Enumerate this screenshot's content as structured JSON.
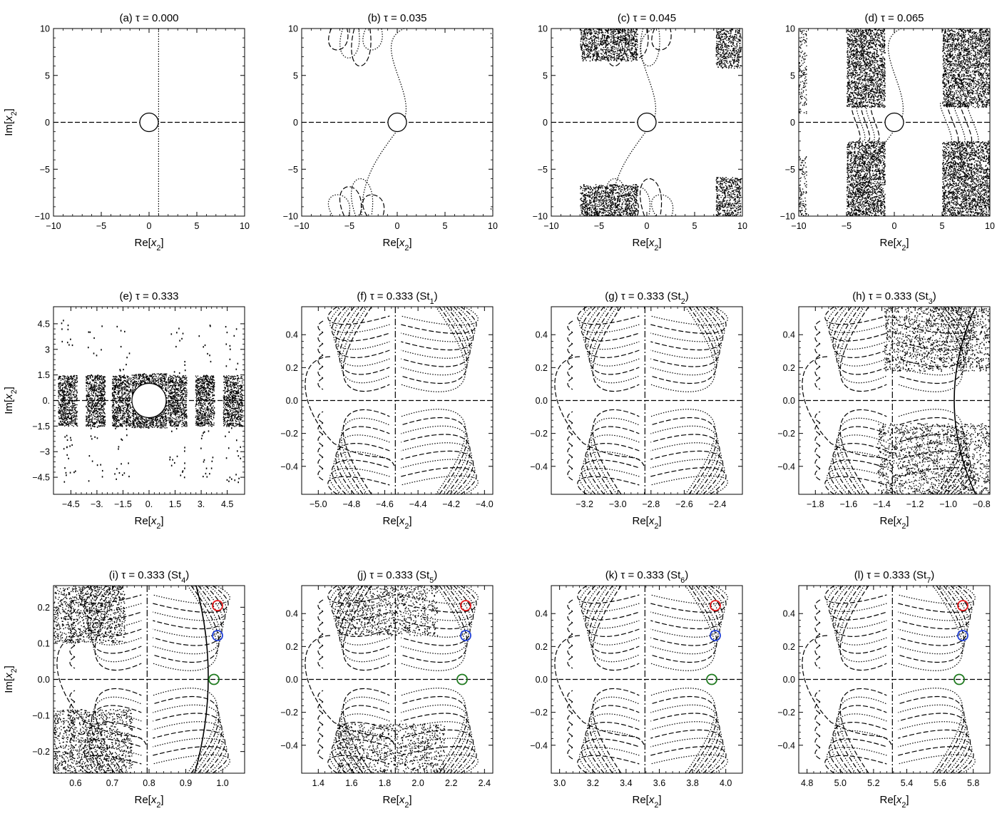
{
  "figure": {
    "panels": [
      {
        "id": "a",
        "title": "(a) τ = 0.000",
        "xlabel": "Re[x2]",
        "ylabel": "Im[x2]",
        "xticks": [
          "−10",
          "−5",
          "0",
          "5",
          "10"
        ],
        "yticks": [
          "10",
          "5",
          "0",
          "−5",
          "−10"
        ],
        "xrange": [
          -10,
          10
        ],
        "yrange": [
          -10,
          10
        ],
        "content": "axes-cross"
      },
      {
        "id": "b",
        "title": "(b) τ = 0.035",
        "xlabel": "Re[x2]",
        "ylabel": "",
        "xticks": [
          "−10",
          "−5",
          "0",
          "5",
          "10"
        ],
        "yticks": [
          "10",
          "5",
          "0",
          "−5",
          "−10"
        ],
        "xrange": [
          -10,
          10
        ],
        "yrange": [
          -10,
          10
        ],
        "content": "petals"
      },
      {
        "id": "c",
        "title": "(c) τ = 0.045",
        "xlabel": "Re[x2]",
        "ylabel": "",
        "xticks": [
          "−10",
          "−5",
          "0",
          "5",
          "10"
        ],
        "yticks": [
          "10",
          "5",
          "0",
          "−5",
          "−10"
        ],
        "xrange": [
          -10,
          10
        ],
        "yrange": [
          -10,
          10
        ],
        "content": "petals-dense"
      },
      {
        "id": "d",
        "title": "(d) τ = 0.065",
        "xlabel": "Re[x2]",
        "ylabel": "",
        "xticks": [
          "−10",
          "−5",
          "0",
          "5",
          "10"
        ],
        "yticks": [
          "10",
          "5",
          "0",
          "−5",
          "−10"
        ],
        "xrange": [
          -10,
          10
        ],
        "yrange": [
          -10,
          10
        ],
        "content": "bands"
      },
      {
        "id": "e",
        "title": "(e) τ = 0.333",
        "xlabel": "Re[x2]",
        "ylabel": "Im[x2]",
        "xticks": [
          "−4.5",
          "−3.",
          "−1.5",
          "0.",
          "1.5",
          "3.",
          "4.5"
        ],
        "yticks": [
          "4.5",
          "3",
          "1.5",
          "0.",
          "−1.5",
          "−3",
          "−4.5"
        ],
        "xrange": [
          -5.5,
          5.5
        ],
        "yrange": [
          -5.5,
          5.5
        ],
        "content": "scatter"
      },
      {
        "id": "f",
        "title": "(f) τ = 0.333 (St1)",
        "xlabel": "Re[x2]",
        "ylabel": "",
        "xticks": [
          "−5.0",
          "−4.8",
          "−4.6",
          "−4.4",
          "−4.2",
          "−4.0"
        ],
        "yticks": [
          "0.4",
          "0.2",
          "0.0",
          "−0.2",
          "−0.4"
        ],
        "xrange": [
          -5.1,
          -3.95
        ],
        "yrange": [
          -0.57,
          0.57
        ],
        "content": "stokes"
      },
      {
        "id": "g",
        "title": "(g) τ = 0.333 (St2)",
        "xlabel": "Re[x2]",
        "ylabel": "",
        "xticks": [
          "−3.2",
          "−3.0",
          "−2.8",
          "−2.6",
          "−2.4"
        ],
        "yticks": [
          "0.4",
          "0.2",
          "0.0",
          "−0.2",
          "−0.4"
        ],
        "xrange": [
          -3.4,
          -2.25
        ],
        "yrange": [
          -0.57,
          0.57
        ],
        "content": "stokes"
      },
      {
        "id": "h",
        "title": "(h) τ = 0.333 (St3)",
        "xlabel": "Re[x2]",
        "ylabel": "",
        "xticks": [
          "−1.8",
          "−1.6",
          "−1.4",
          "−1.2",
          "−1.0",
          "−0.8"
        ],
        "yticks": [
          "0.4",
          "0.2",
          "0.0",
          "−0.2",
          "−0.4"
        ],
        "xrange": [
          -1.9,
          -0.75
        ],
        "yrange": [
          -0.57,
          0.57
        ],
        "content": "stokes-cut"
      },
      {
        "id": "i",
        "title": "(i) τ = 0.333 (St4)",
        "xlabel": "Re[x2]",
        "ylabel": "Im[x2]",
        "xticks": [
          "0.6",
          "0.7",
          "0.8",
          "0.9",
          "1.0"
        ],
        "yticks": [
          "0.2",
          "0.1",
          "0.0",
          "−0.1",
          "−0.2"
        ],
        "xrange": [
          0.54,
          1.06
        ],
        "yrange": [
          -0.26,
          0.26
        ],
        "content": "stokes-markers"
      },
      {
        "id": "j",
        "title": "(j) τ = 0.333 (St5)",
        "xlabel": "Re[x2]",
        "ylabel": "",
        "xticks": [
          "1.4",
          "1.6",
          "1.8",
          "2.0",
          "2.2",
          "2.4"
        ],
        "yticks": [
          "0.4",
          "0.2",
          "0.0",
          "−0.2",
          "−0.4"
        ],
        "xrange": [
          1.3,
          2.45
        ],
        "yrange": [
          -0.57,
          0.57
        ],
        "content": "stokes-markers"
      },
      {
        "id": "k",
        "title": "(k) τ = 0.333 (St6)",
        "xlabel": "Re[x2]",
        "ylabel": "",
        "xticks": [
          "3.0",
          "3.2",
          "3.4",
          "3.6",
          "3.8",
          "4.0"
        ],
        "yticks": [
          "0.4",
          "0.2",
          "0.0",
          "−0.2",
          "−0.4"
        ],
        "xrange": [
          2.95,
          4.1
        ],
        "yrange": [
          -0.57,
          0.57
        ],
        "content": "stokes-markers"
      },
      {
        "id": "l",
        "title": "(l) τ = 0.333 (St7)",
        "xlabel": "Re[x2]",
        "ylabel": "",
        "xticks": [
          "4.8",
          "5.0",
          "5.2",
          "5.4",
          "5.6",
          "5.8"
        ],
        "yticks": [
          "0.4",
          "0.2",
          "0.0",
          "−0.2",
          "−0.4"
        ],
        "xrange": [
          4.75,
          5.9
        ],
        "yrange": [
          -0.57,
          0.57
        ],
        "content": "stokes-markers"
      }
    ],
    "colors": {
      "axis": "#000000",
      "marker_red": "#e41a1c",
      "marker_blue": "#1f3fd6",
      "marker_green": "#1f7a1f"
    }
  }
}
